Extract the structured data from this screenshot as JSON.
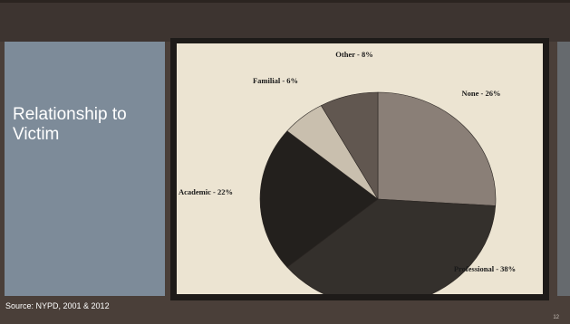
{
  "slide": {
    "title": "Relationship to Victim",
    "source": "Source: NYPD, 2001 & 2012",
    "page_number": "12"
  },
  "chart_data": {
    "type": "pie",
    "categories": [
      "None",
      "Professional",
      "Academic",
      "Familial",
      "Other"
    ],
    "values": [
      26,
      38,
      22,
      6,
      8
    ],
    "labels": [
      "None - 26%",
      "Professional - 38%",
      "Academic - 22%",
      "Familial - 6%",
      "Other - 8%"
    ],
    "colors": [
      "#8a7f77",
      "#34302c",
      "#23201d",
      "#c9bfae",
      "#615750"
    ],
    "start_angle_degrees": 0,
    "direction": "clockwise",
    "legend": "none"
  }
}
